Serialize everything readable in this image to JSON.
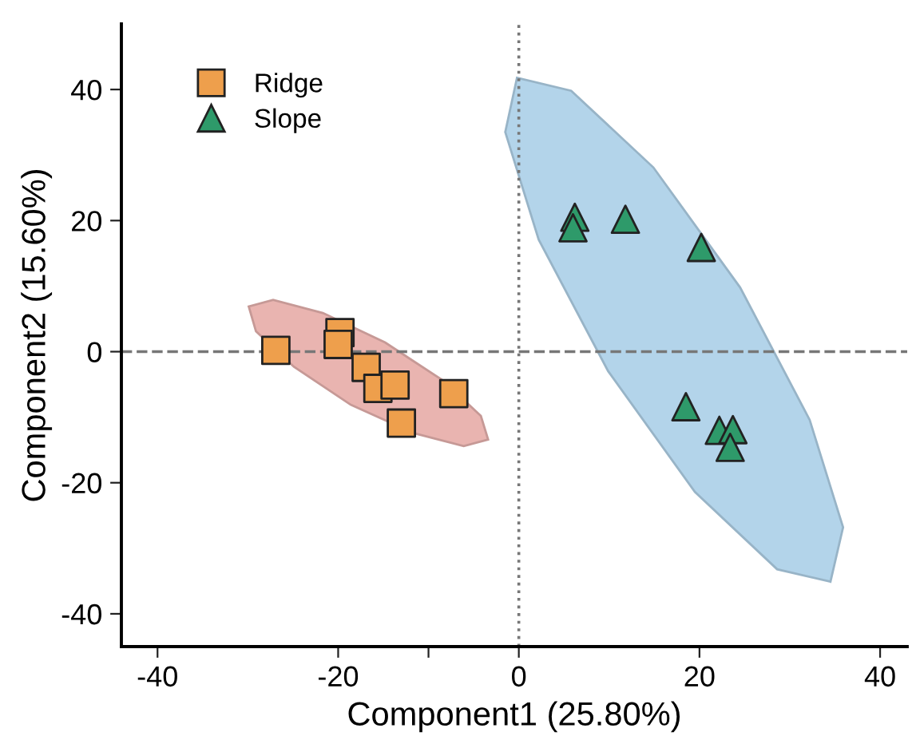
{
  "chart_data": {
    "type": "scatter",
    "xlabel": "Component1 (25.80%)",
    "ylabel": "Component2 (15.60%)",
    "xlim": [
      -44,
      43
    ],
    "ylim": [
      -45,
      50
    ],
    "xticks": [
      -40,
      -20,
      {
        "value": -10,
        "label": null
      },
      0,
      20,
      40
    ],
    "yticks": [
      -40,
      -20,
      0,
      20,
      40
    ],
    "grid": false,
    "legend": "top left",
    "ref_lines": [
      {
        "axis": "x",
        "value": 0,
        "color": "#777777",
        "line_style": "dotted"
      },
      {
        "axis": "y",
        "value": 0,
        "color": "#777777",
        "line_style": "dashed"
      }
    ],
    "series": [
      {
        "type": "area",
        "color": "#e9b4b0",
        "x": [
          -3.4,
          -6.1,
          -11.7,
          -18.6,
          -24.9,
          -29.1,
          -29.9,
          -27.2,
          -21.7,
          -14.8,
          -8.4,
          -4.2
        ],
        "values": [
          -13.4,
          -14.4,
          -12.4,
          -8.1,
          -2.3,
          3.1,
          6.9,
          7.9,
          5.9,
          1.4,
          -4.4,
          -9.8
        ]
      },
      {
        "type": "area",
        "color": "#b3d4ea",
        "x": [
          34.5,
          28.6,
          19.5,
          9.9,
          2.2,
          -1.5,
          -0.2,
          5.8,
          14.9,
          24.5,
          32.2,
          35.9
        ],
        "values": [
          -35.1,
          -33.2,
          -21.4,
          -3.0,
          17.1,
          33.5,
          41.8,
          39.8,
          28.1,
          9.8,
          -10.4,
          -26.8
        ]
      },
      {
        "name": "Ridge",
        "marker": "square",
        "color": "#ee9f4c",
        "x": [
          -26.9,
          -19.8,
          -20.0,
          -16.9,
          -15.6,
          -13.7,
          -13.0,
          -7.2
        ],
        "values": [
          0.2,
          2.9,
          1.1,
          -2.4,
          -5.6,
          -5.1,
          -10.9,
          -6.4
        ]
      },
      {
        "name": "Slope",
        "marker": "triangle",
        "color": "#2e9a6a",
        "x": [
          6.2,
          6.0,
          11.8,
          20.2,
          18.5,
          22.2,
          23.7,
          23.4
        ],
        "values": [
          20.5,
          18.9,
          20.2,
          15.9,
          -8.4,
          -12.0,
          -11.9,
          -14.6
        ]
      }
    ]
  }
}
